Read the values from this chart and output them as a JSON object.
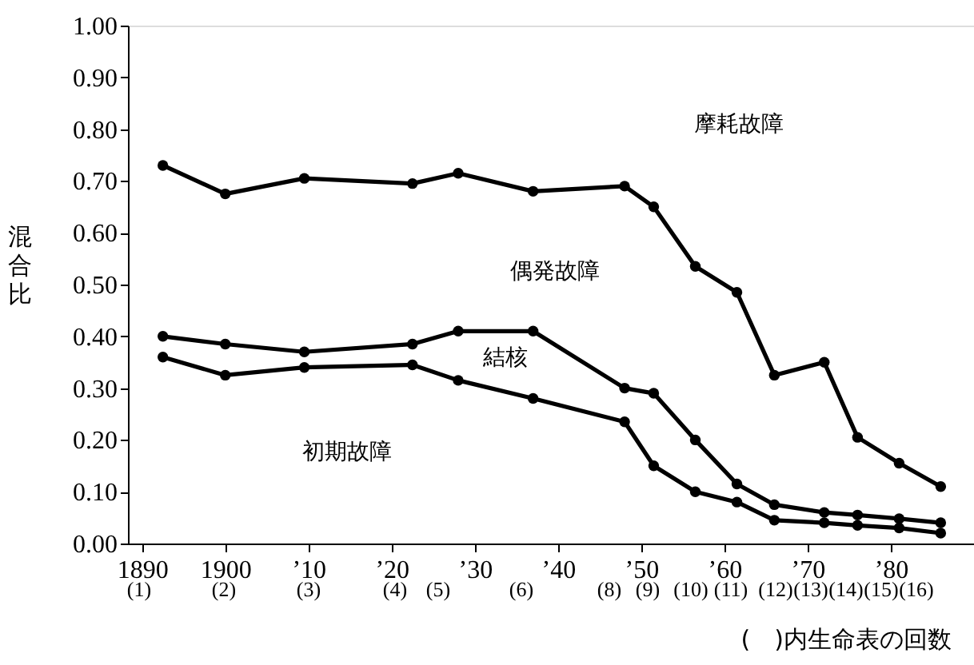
{
  "chart_data": {
    "type": "line",
    "ylabel": "混合比",
    "x": [
      1892.5,
      1900,
      1909.5,
      1922.5,
      1928,
      1937,
      1948,
      1951.5,
      1956.5,
      1961.5,
      1966,
      1972,
      1976,
      1981,
      1986
    ],
    "series": [
      {
        "color": "#000000",
        "values": [
          0.73,
          0.675,
          0.705,
          0.695,
          0.715,
          0.68,
          0.69,
          0.65,
          0.535,
          0.485,
          0.325,
          0.35,
          0.205,
          0.155,
          0.11
        ]
      },
      {
        "color": "#000000",
        "values": [
          0.4,
          0.385,
          0.37,
          0.385,
          0.41,
          0.41,
          0.3,
          0.29,
          0.2,
          0.115,
          0.075,
          0.06,
          0.055,
          0.048,
          0.04
        ]
      },
      {
        "color": "#000000",
        "values": [
          0.36,
          0.325,
          0.34,
          0.345,
          0.315,
          0.28,
          0.235,
          0.15,
          0.1,
          0.08,
          0.045,
          0.04,
          0.035,
          0.03,
          0.02
        ]
      }
    ],
    "xlim": [
      1888.3,
      1990
    ],
    "xticks": [
      {
        "value": 1890,
        "label": "1890"
      },
      {
        "value": 1900,
        "label": "1900"
      },
      {
        "value": 1910,
        "label": "’10"
      },
      {
        "value": 1920,
        "label": "’20"
      },
      {
        "value": 1930,
        "label": "’30"
      },
      {
        "value": 1940,
        "label": "’40"
      },
      {
        "value": 1950,
        "label": "’50"
      },
      {
        "value": 1960,
        "label": "’60"
      },
      {
        "value": 1970,
        "label": "’70"
      },
      {
        "value": 1980,
        "label": "’80"
      }
    ],
    "ylim": [
      0,
      1
    ],
    "yticks": [
      {
        "value": 0,
        "label": "0.00"
      },
      {
        "value": 0.1,
        "label": "0.10"
      },
      {
        "value": 0.2,
        "label": "0.20"
      },
      {
        "value": 0.3,
        "label": "0.30"
      },
      {
        "value": 0.4,
        "label": "0.40"
      },
      {
        "value": 0.5,
        "label": "0.50"
      },
      {
        "value": 0.6,
        "label": "0.60"
      },
      {
        "value": 0.7,
        "label": "0.70"
      },
      {
        "value": 0.8,
        "label": "0.80"
      },
      {
        "value": 0.9,
        "label": "0.90"
      },
      {
        "value": 1,
        "label": "1.00"
      }
    ],
    "annotations": [
      "摩耗故障",
      "偶発故障",
      "結核",
      "初期故障",
      "(1)",
      "(2)",
      "(3)",
      "(4)",
      "(5)",
      "(6)",
      "(8)",
      "(9)",
      "(10)",
      "(11)",
      "(12)",
      "(13)",
      "(14)",
      "(15)",
      "(16)",
      "(　)内生命表の回数"
    ],
    "marker": "circle",
    "line_style": "solid",
    "grid": false
  }
}
